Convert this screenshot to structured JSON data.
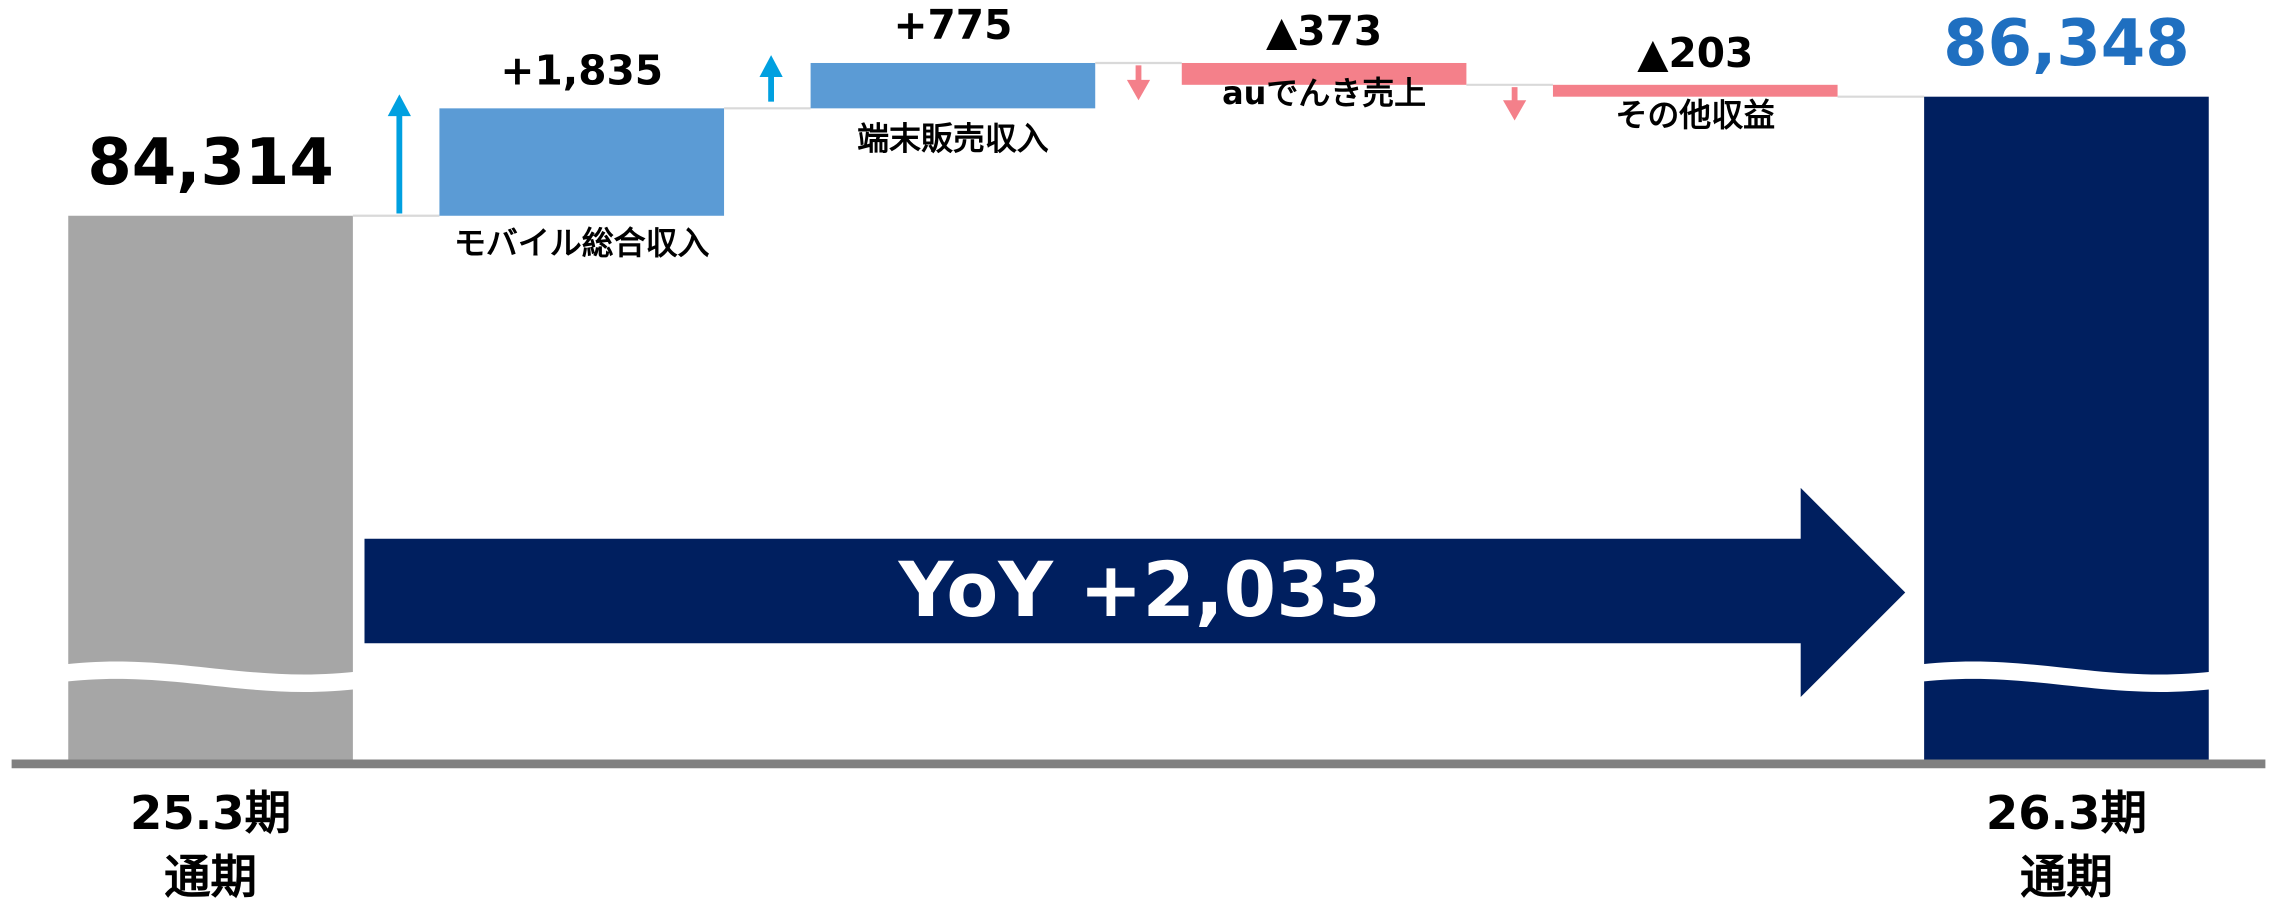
{
  "chart_data": {
    "type": "waterfall",
    "categories": [
      "25.3期\n通期",
      "モバイル総合収入",
      "端末販売収入",
      "auでんき売上",
      "その他収益",
      "26.3期\n通期"
    ],
    "measure": [
      "absolute",
      "relative",
      "relative",
      "relative",
      "relative",
      "total"
    ],
    "values": [
      84314,
      1835,
      775,
      -373,
      -203,
      86348
    ],
    "value_labels": [
      "84,314",
      "+1,835",
      "+775",
      "▲373",
      "▲203",
      "86,348"
    ],
    "colors": [
      "#a6a6a6",
      "#5b9bd5",
      "#5b9bd5",
      "#f4808a",
      "#f4808a",
      "#001f5f"
    ],
    "ylim": [
      75000,
      88000
    ],
    "axis_break": true,
    "annotation": "YoY +2,033"
  }
}
